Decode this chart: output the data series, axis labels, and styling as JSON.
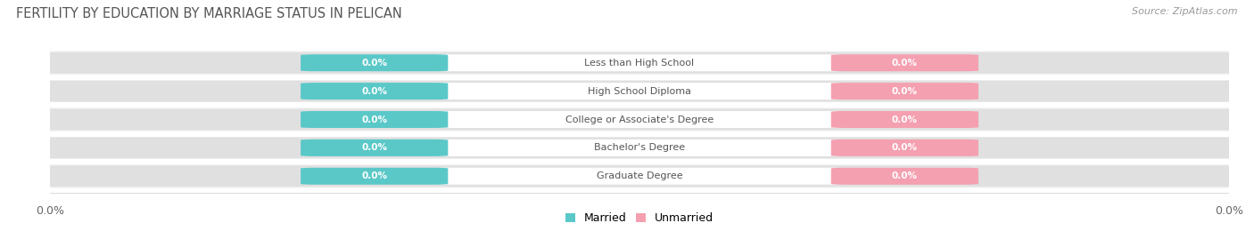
{
  "title": "FERTILITY BY EDUCATION BY MARRIAGE STATUS IN PELICAN",
  "source": "Source: ZipAtlas.com",
  "categories": [
    "Less than High School",
    "High School Diploma",
    "College or Associate's Degree",
    "Bachelor's Degree",
    "Graduate Degree"
  ],
  "married_values": [
    0.0,
    0.0,
    0.0,
    0.0,
    0.0
  ],
  "unmarried_values": [
    0.0,
    0.0,
    0.0,
    0.0,
    0.0
  ],
  "married_color": "#5BC8C8",
  "unmarried_color": "#F4A0B0",
  "bar_bg_color": "#E0E0E0",
  "row_bg_even": "#F5F5F5",
  "row_bg_odd": "#FFFFFF",
  "category_label_color": "#555555",
  "title_color": "#555555",
  "source_color": "#999999",
  "figsize": [
    14.06,
    2.69
  ],
  "dpi": 100
}
